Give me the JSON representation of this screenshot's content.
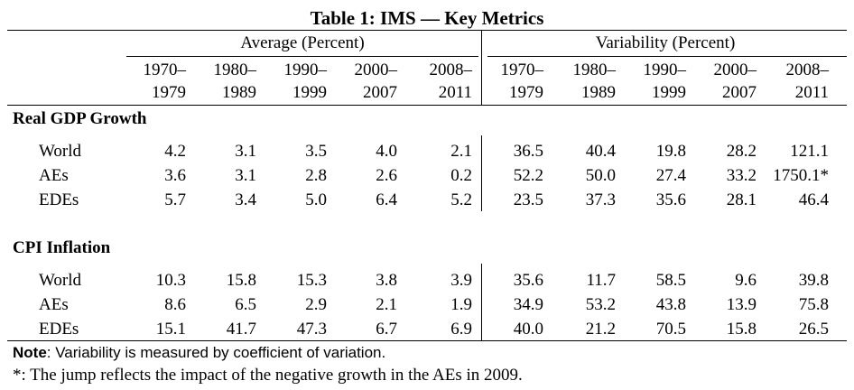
{
  "title": "Table 1: IMS — Key Metrics",
  "groups": [
    "Average (Percent)",
    "Variability (Percent)"
  ],
  "columns": [
    {
      "line1": "1970–",
      "line2": "1979"
    },
    {
      "line1": "1980–",
      "line2": "1989"
    },
    {
      "line1": "1990–",
      "line2": "1999"
    },
    {
      "line1": "2000–",
      "line2": "2007"
    },
    {
      "line1": "2008–",
      "line2": "2011"
    },
    {
      "line1": "1970–",
      "line2": "1979"
    },
    {
      "line1": "1980–",
      "line2": "1989"
    },
    {
      "line1": "1990–",
      "line2": "1999"
    },
    {
      "line1": "2000–",
      "line2": "2007"
    },
    {
      "line1": "2008–",
      "line2": "2011"
    }
  ],
  "sections": [
    {
      "name": "Real GDP Growth",
      "rows": [
        {
          "label": "World",
          "values": [
            "4.2",
            "3.1",
            "3.5",
            "4.0",
            "2.1",
            "36.5",
            "40.4",
            "19.8",
            "28.2",
            "121.1"
          ]
        },
        {
          "label": "AEs",
          "values": [
            "3.6",
            "3.1",
            "2.8",
            "2.6",
            "0.2",
            "52.2",
            "50.0",
            "27.4",
            "33.2",
            "1750.1*"
          ]
        },
        {
          "label": "EDEs",
          "values": [
            "5.7",
            "3.4",
            "5.0",
            "6.4",
            "5.2",
            "23.5",
            "37.3",
            "35.6",
            "28.1",
            "46.4"
          ]
        }
      ]
    },
    {
      "name": "CPI Inflation",
      "rows": [
        {
          "label": "World",
          "values": [
            "10.3",
            "15.8",
            "15.3",
            "3.8",
            "3.9",
            "35.6",
            "11.7",
            "58.5",
            "9.6",
            "39.8"
          ]
        },
        {
          "label": "AEs",
          "values": [
            "8.6",
            "6.5",
            "2.9",
            "2.1",
            "1.9",
            "34.9",
            "53.2",
            "43.8",
            "13.9",
            "75.8"
          ]
        },
        {
          "label": "EDEs",
          "values": [
            "15.1",
            "41.7",
            "47.3",
            "6.7",
            "6.9",
            "40.0",
            "21.2",
            "70.5",
            "15.8",
            "26.5"
          ]
        }
      ]
    }
  ],
  "note": {
    "label": "Note",
    "text": ": Variability is measured by coefficient of variation.",
    "footnote": "*: The jump reflects the impact of the negative growth in the AEs in 2009."
  }
}
